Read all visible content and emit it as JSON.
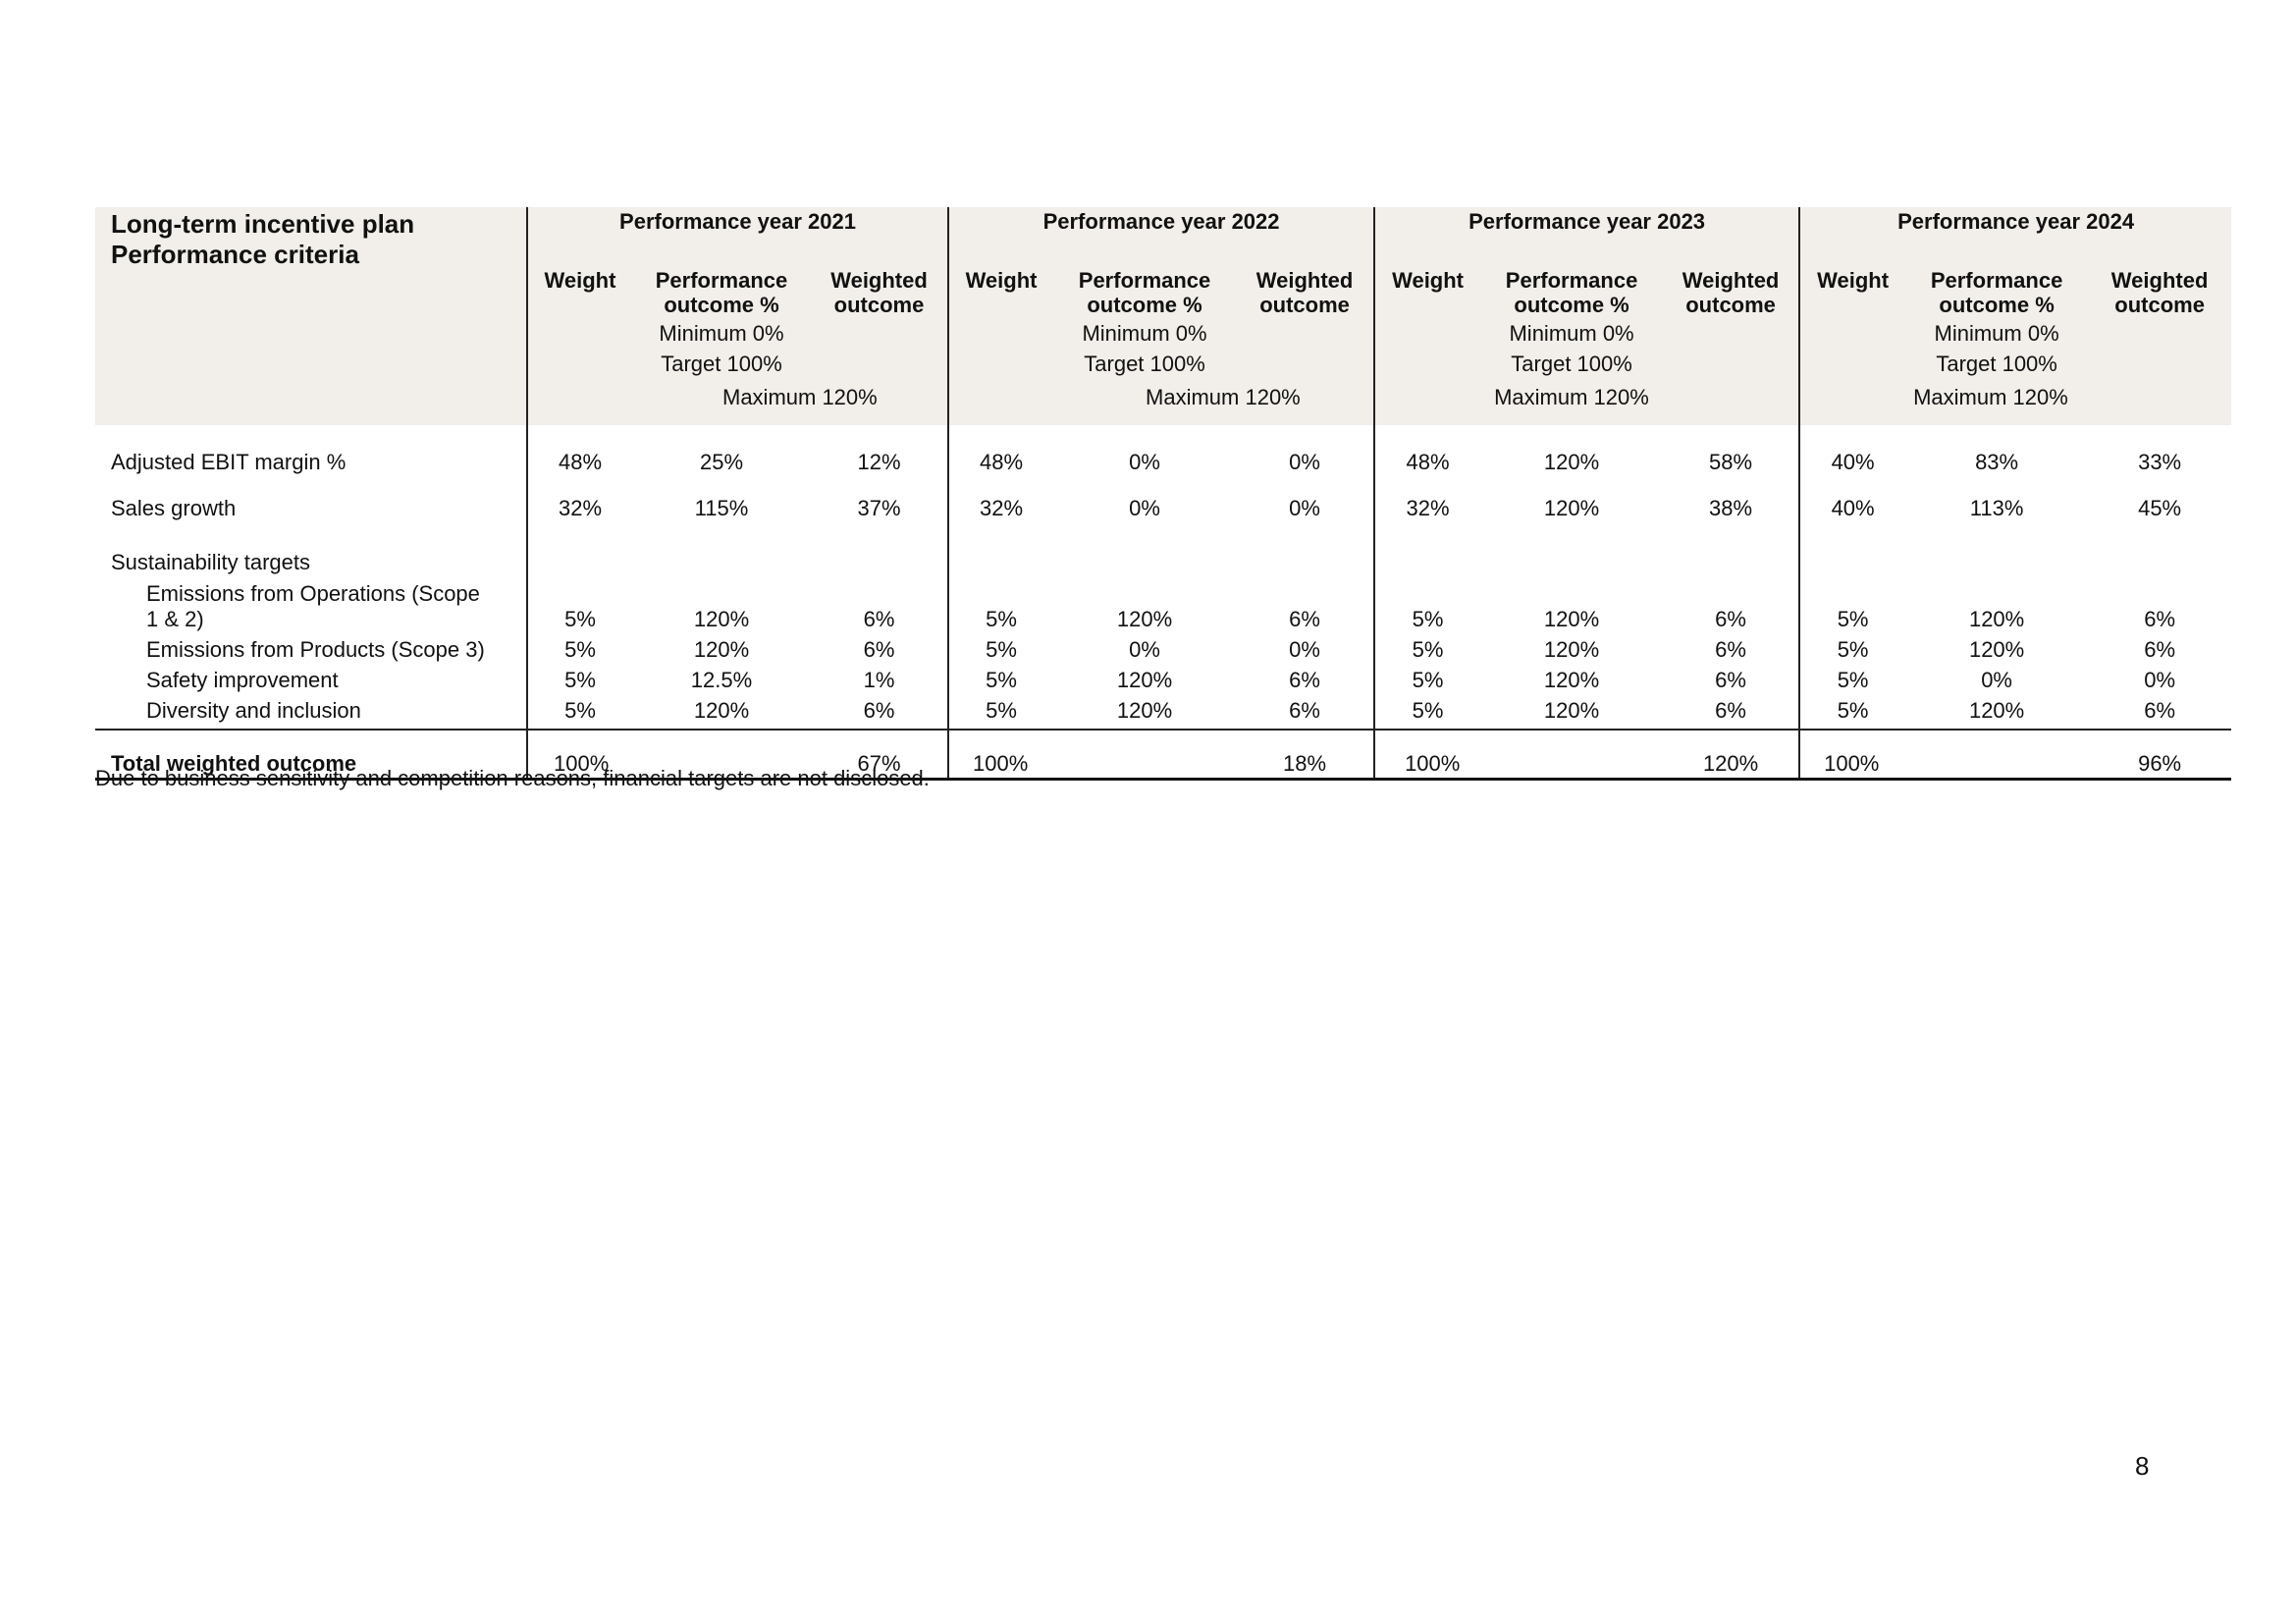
{
  "table": {
    "title_line1": "Long-term incentive plan",
    "title_line2": "Performance criteria",
    "years": [
      "Performance year 2021",
      "Performance year 2022",
      "Performance year 2023",
      "Performance year 2024"
    ],
    "columns": {
      "weight": "Weight",
      "performance_line1": "Performance",
      "performance_line2": "outcome %",
      "weighted_line1": "Weighted",
      "weighted_line2": "outcome",
      "minimum": "Minimum 0%",
      "target": "Target 100%",
      "maximum": "Maximum 120%"
    },
    "rows": {
      "ebit": {
        "label": "Adjusted EBIT margin %",
        "values": [
          [
            "48%",
            "25%",
            "12%"
          ],
          [
            "48%",
            "0%",
            "0%"
          ],
          [
            "48%",
            "120%",
            "58%"
          ],
          [
            "40%",
            "83%",
            "33%"
          ]
        ]
      },
      "sales": {
        "label": "Sales growth",
        "values": [
          [
            "32%",
            "115%",
            "37%"
          ],
          [
            "32%",
            "0%",
            "0%"
          ],
          [
            "32%",
            "120%",
            "38%"
          ],
          [
            "40%",
            "113%",
            "45%"
          ]
        ]
      },
      "sustainability_label": "Sustainability targets",
      "scope12": {
        "label_line1": "Emissions from Operations (Scope",
        "label_line2": "1 & 2)",
        "values": [
          [
            "5%",
            "120%",
            "6%"
          ],
          [
            "5%",
            "120%",
            "6%"
          ],
          [
            "5%",
            "120%",
            "6%"
          ],
          [
            "5%",
            "120%",
            "6%"
          ]
        ]
      },
      "scope3": {
        "label": "Emissions from Products (Scope 3)",
        "values": [
          [
            "5%",
            "120%",
            "6%"
          ],
          [
            "5%",
            "0%",
            "0%"
          ],
          [
            "5%",
            "120%",
            "6%"
          ],
          [
            "5%",
            "120%",
            "6%"
          ]
        ]
      },
      "safety": {
        "label": "Safety improvement",
        "values": [
          [
            "5%",
            "12.5%",
            "1%"
          ],
          [
            "5%",
            "120%",
            "6%"
          ],
          [
            "5%",
            "120%",
            "6%"
          ],
          [
            "5%",
            "0%",
            "0%"
          ]
        ]
      },
      "diversity": {
        "label": "Diversity and inclusion",
        "values": [
          [
            "5%",
            "120%",
            "6%"
          ],
          [
            "5%",
            "120%",
            "6%"
          ],
          [
            "5%",
            "120%",
            "6%"
          ],
          [
            "5%",
            "120%",
            "6%"
          ]
        ]
      }
    },
    "total": {
      "label": "Total weighted outcome",
      "weights": [
        "100%",
        "100%",
        "100%",
        "100%"
      ],
      "outcomes": [
        "67%",
        "18%",
        "120%",
        "96%"
      ]
    }
  },
  "footnote": "Due to business sensitivity and competition reasons, financial targets are not disclosed.",
  "page_number": "8"
}
